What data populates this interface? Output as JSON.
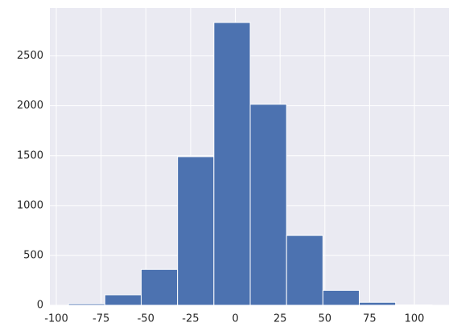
{
  "chart_data": {
    "type": "histogram",
    "bins": [
      -93.2,
      -72.9,
      -52.6,
      -32.3,
      -12.0,
      8.3,
      28.6,
      48.9,
      69.2,
      89.5,
      109.8
    ],
    "values": [
      15,
      105,
      360,
      1490,
      2835,
      2015,
      700,
      150,
      30,
      3
    ],
    "color": "#4c72b0",
    "xlim": [
      -103.6,
      119.3
    ],
    "xticks": [
      -100,
      -75,
      -50,
      -25,
      0,
      25,
      50,
      75,
      100
    ],
    "ylim": [
      0,
      2980
    ],
    "yticks": [
      0,
      500,
      1000,
      1500,
      2000,
      2500
    ],
    "grid": true
  }
}
